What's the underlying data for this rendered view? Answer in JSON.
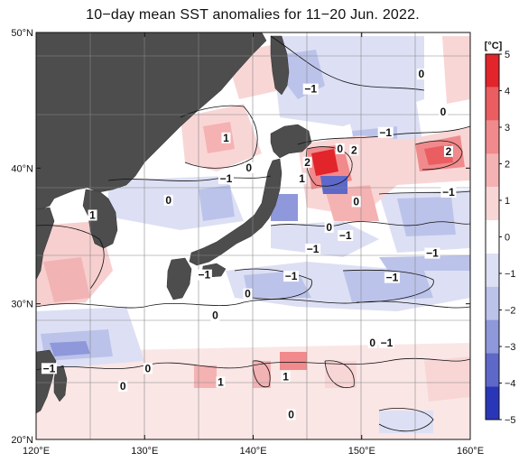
{
  "title": "10−day mean SST anomalies for 11−20 Jun. 2022.",
  "chart_data": {
    "type": "heatmap",
    "title": "10−day mean SST anomalies for 11−20 Jun. 2022.",
    "x_axis": {
      "range": [
        120,
        160
      ],
      "ticks": [
        120,
        130,
        140,
        150,
        160
      ],
      "tick_labels": [
        "120°E",
        "130°E",
        "140°E",
        "150°E",
        "160°E"
      ]
    },
    "y_axis": {
      "range": [
        20,
        50
      ],
      "ticks": [
        20,
        30,
        40,
        50
      ],
      "tick_labels": [
        "20°N",
        "30°N",
        "40°N",
        "50°N"
      ]
    },
    "grid": true,
    "colorbar": {
      "unit_label": "[°C]",
      "ticks": [
        5,
        4,
        3,
        2,
        1,
        0,
        -1,
        -2,
        -3,
        -4,
        -5
      ],
      "tick_labels": [
        "5",
        "4",
        "3",
        "2",
        "1",
        "0",
        "−1",
        "−2",
        "−3",
        "−4",
        "−5"
      ],
      "colors": [
        "#e2242b",
        "#ea5d60",
        "#f08a8c",
        "#f5b2b3",
        "#f9d6d6",
        "#ffffff",
        "#dde0f4",
        "#bcc3ea",
        "#8e98da",
        "#5d68c8",
        "#2a36b8"
      ]
    },
    "contour_labels": [
      {
        "text": "0",
        "lon": 155.5,
        "lat": 46.8
      },
      {
        "text": "−1",
        "lon": 145.3,
        "lat": 45.7
      },
      {
        "text": "0",
        "lon": 157.5,
        "lat": 44.0
      },
      {
        "text": "1",
        "lon": 137.5,
        "lat": 42.1
      },
      {
        "text": "−1",
        "lon": 152.2,
        "lat": 42.5
      },
      {
        "text": "0",
        "lon": 148.0,
        "lat": 41.3
      },
      {
        "text": "2",
        "lon": 149.3,
        "lat": 41.2
      },
      {
        "text": "2",
        "lon": 158.0,
        "lat": 41.1
      },
      {
        "text": "2",
        "lon": 145.0,
        "lat": 40.3
      },
      {
        "text": "0",
        "lon": 139.6,
        "lat": 39.9
      },
      {
        "text": "−1",
        "lon": 137.5,
        "lat": 39.1
      },
      {
        "text": "1",
        "lon": 144.5,
        "lat": 39.1
      },
      {
        "text": "−1",
        "lon": 158.0,
        "lat": 38.1
      },
      {
        "text": "0",
        "lon": 132.2,
        "lat": 37.5
      },
      {
        "text": "0",
        "lon": 149.5,
        "lat": 37.4
      },
      {
        "text": "1",
        "lon": 125.2,
        "lat": 36.4
      },
      {
        "text": "0",
        "lon": 147.0,
        "lat": 35.5
      },
      {
        "text": "−1",
        "lon": 148.5,
        "lat": 34.9
      },
      {
        "text": "−1",
        "lon": 145.5,
        "lat": 33.9
      },
      {
        "text": "−1",
        "lon": 156.5,
        "lat": 33.6
      },
      {
        "text": "−1",
        "lon": 135.5,
        "lat": 32.0
      },
      {
        "text": "−1",
        "lon": 143.5,
        "lat": 31.9
      },
      {
        "text": "−1",
        "lon": 152.8,
        "lat": 31.8
      },
      {
        "text": "0",
        "lon": 139.5,
        "lat": 30.6
      },
      {
        "text": "0",
        "lon": 136.5,
        "lat": 29.0
      },
      {
        "text": "0",
        "lon": 151.0,
        "lat": 27.0
      },
      {
        "text": "−1",
        "lon": 152.3,
        "lat": 27.0
      },
      {
        "text": "−1",
        "lon": 121.2,
        "lat": 25.1
      },
      {
        "text": "0",
        "lon": 130.3,
        "lat": 25.1
      },
      {
        "text": "1",
        "lon": 143.0,
        "lat": 24.5
      },
      {
        "text": "1",
        "lon": 137.0,
        "lat": 24.1
      },
      {
        "text": "0",
        "lon": 128.0,
        "lat": 23.8
      },
      {
        "text": "0",
        "lon": 143.5,
        "lat": 21.7
      }
    ]
  }
}
